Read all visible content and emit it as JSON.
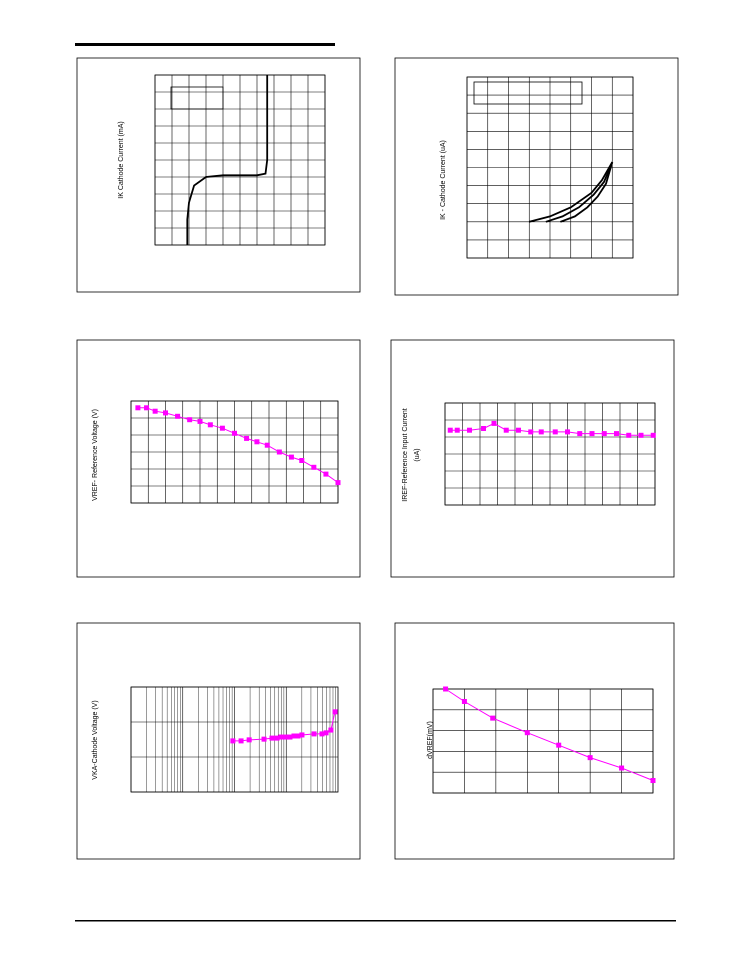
{
  "chart_data": [
    {
      "type": "line",
      "y_label": "IK Cathode Current (mA)",
      "xlim": [
        0,
        10
      ],
      "ylim": [
        0,
        10
      ],
      "grid": true,
      "series": [
        {
          "color": "#000000",
          "x": [
            1.9,
            1.9,
            2.0,
            2.3,
            3,
            4,
            5,
            6,
            6.5,
            6.6,
            6.6,
            6.6
          ],
          "values": [
            0,
            1.5,
            2.5,
            3.5,
            4.0,
            4.1,
            4.1,
            4.1,
            4.2,
            5,
            8,
            10
          ]
        }
      ]
    },
    {
      "type": "line",
      "y_label": "IK - Cathode Current (uA)",
      "xlim": [
        0,
        8
      ],
      "ylim": [
        0,
        10
      ],
      "grid": true,
      "series": [
        {
          "color": "#000000",
          "x": [
            3,
            4,
            5,
            6,
            6.5,
            7
          ],
          "values": [
            2,
            2.3,
            2.8,
            3.6,
            4.3,
            5.3
          ]
        },
        {
          "color": "#000000",
          "x": [
            3.8,
            4.6,
            5.4,
            6.1,
            6.6,
            7
          ],
          "values": [
            2,
            2.3,
            2.8,
            3.5,
            4.2,
            5.3
          ]
        },
        {
          "color": "#000000",
          "x": [
            4.5,
            5.2,
            5.8,
            6.3,
            6.7,
            7
          ],
          "values": [
            2,
            2.3,
            2.8,
            3.4,
            4.1,
            5.3
          ]
        }
      ]
    },
    {
      "type": "line",
      "y_label": "VREF- Reference Voltage (V)",
      "xlim": [
        0,
        12
      ],
      "ylim": [
        0,
        6
      ],
      "grid": true,
      "series": [
        {
          "color": "#ff00ff",
          "x": [
            0.4,
            0.9,
            1.4,
            2.0,
            2.7,
            3.4,
            4.0,
            4.6,
            5.3,
            6.0,
            6.7,
            7.3,
            7.9,
            8.6,
            9.3,
            9.9,
            10.6,
            11.3,
            12.0
          ],
          "values": [
            5.6,
            5.6,
            5.4,
            5.3,
            5.1,
            4.9,
            4.8,
            4.6,
            4.4,
            4.1,
            3.8,
            3.6,
            3.4,
            3.0,
            2.7,
            2.5,
            2.1,
            1.7,
            1.2
          ]
        }
      ]
    },
    {
      "type": "line",
      "y_label": [
        "IREF-Reference Input Current",
        "(uA)"
      ],
      "xlim": [
        0,
        12
      ],
      "ylim": [
        0,
        6
      ],
      "grid": true,
      "series": [
        {
          "color": "#ff00ff",
          "x": [
            0.3,
            0.7,
            1.4,
            2.2,
            2.8,
            3.5,
            4.2,
            4.9,
            5.5,
            6.3,
            7.0,
            7.7,
            8.4,
            9.1,
            9.8,
            10.5,
            11.2,
            11.9
          ],
          "values": [
            4.4,
            4.4,
            4.4,
            4.5,
            4.8,
            4.4,
            4.4,
            4.3,
            4.3,
            4.3,
            4.3,
            4.2,
            4.2,
            4.2,
            4.2,
            4.1,
            4.1,
            4.1
          ]
        }
      ]
    },
    {
      "type": "line",
      "y_label": "VKA-Cathode Voltage (V)",
      "xscale": "log",
      "xlim": [
        1,
        10000
      ],
      "ylim": [
        0,
        3
      ],
      "grid": true,
      "series": [
        {
          "color": "#ff00ff",
          "x": [
            93,
            134,
            192,
            372,
            530,
            663,
            792,
            987,
            1180,
            1410,
            1690,
            2010,
            3450,
            4900,
            5880,
            7300,
            8760
          ],
          "values": [
            1.46,
            1.46,
            1.49,
            1.51,
            1.54,
            1.54,
            1.57,
            1.57,
            1.57,
            1.6,
            1.6,
            1.63,
            1.66,
            1.66,
            1.69,
            1.77,
            2.29
          ]
        }
      ]
    },
    {
      "type": "line",
      "y_label": "dVREF(mV)",
      "xlim": [
        0,
        7
      ],
      "ylim": [
        0,
        5
      ],
      "grid": true,
      "series": [
        {
          "color": "#ff00ff",
          "x": [
            0.4,
            1.0,
            1.9,
            3.0,
            4.0,
            5.0,
            6.0,
            7.0
          ],
          "values": [
            5.0,
            4.4,
            3.6,
            2.9,
            2.3,
            1.7,
            1.2,
            0.6
          ]
        }
      ]
    }
  ]
}
